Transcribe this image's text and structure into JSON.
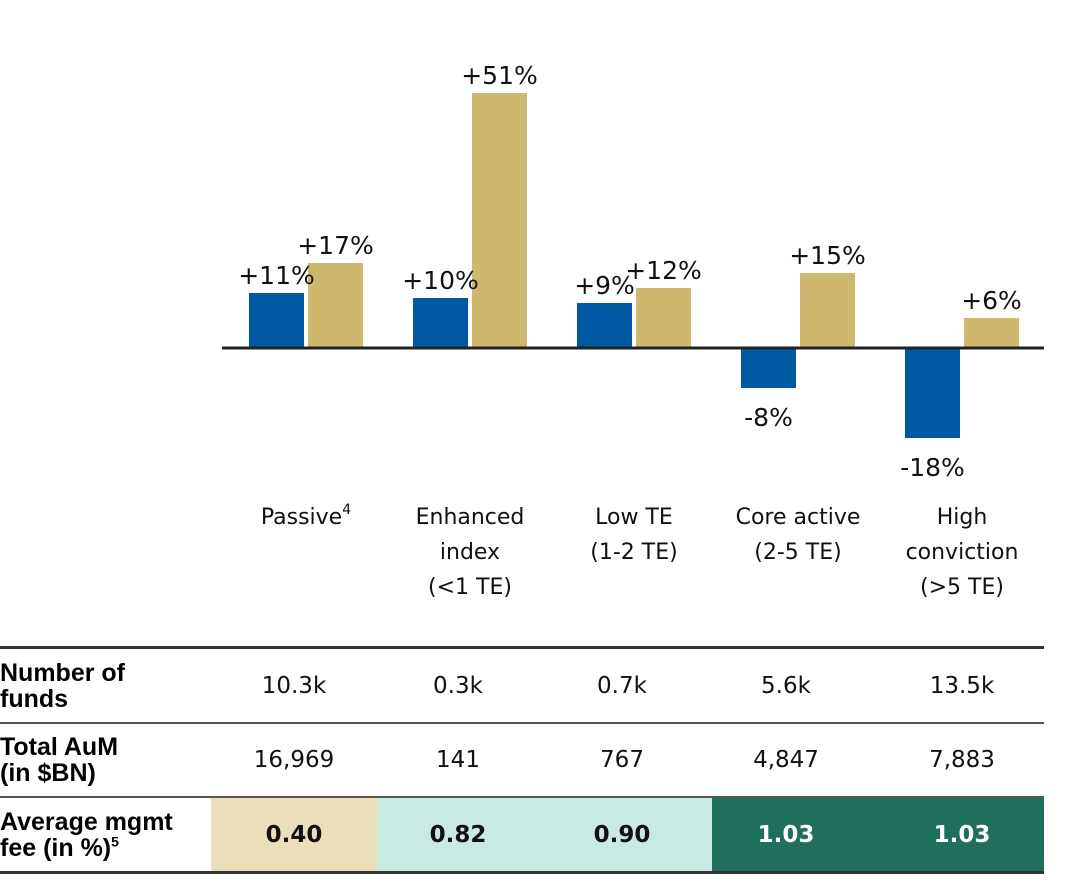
{
  "chart_data": {
    "type": "bar",
    "categories": [
      "Passive",
      "Enhanced index (<1 TE)",
      "Low TE (1-2 TE)",
      "Core active (2-5 TE)",
      "High conviction (>5 TE)"
    ],
    "category_lines": [
      [
        "Passive"
      ],
      [
        "Enhanced",
        "index",
        "(<1 TE)"
      ],
      [
        "Low TE",
        "(1-2 TE)"
      ],
      [
        "Core active",
        "(2-5 TE)"
      ],
      [
        "High",
        "conviction",
        "(>5 TE)"
      ]
    ],
    "category_sup": [
      "4",
      "",
      "",
      "",
      ""
    ],
    "series": [
      {
        "values": [
          11,
          10,
          9,
          -8,
          -18
        ],
        "labels": [
          "+11%",
          "+10%",
          "+9%",
          "-8%",
          "-18%"
        ],
        "color": "#005aa3"
      },
      {
        "values": [
          17,
          51,
          12,
          15,
          6
        ],
        "labels": [
          "+17%",
          "+51%",
          "+12%",
          "+15%",
          "+6%"
        ],
        "color": "#cdb86e"
      }
    ],
    "ylim": [
      -20,
      55
    ],
    "grid": false
  },
  "table": {
    "rows": [
      {
        "label": "Number of funds",
        "label_lines": [
          "Number of",
          "funds"
        ],
        "values": [
          "10.3k",
          "0.3k",
          "0.7k",
          "5.6k",
          "13.5k"
        ]
      },
      {
        "label": "Total AuM (in $BN)",
        "label_lines": [
          "Total AuM",
          "(in $BN)"
        ],
        "values": [
          "16,969",
          "141",
          "767",
          "4,847",
          "7,883"
        ]
      },
      {
        "label": "Average mgmt fee (in %)",
        "label_lines": [
          "Average mgmt",
          "fee (in %)"
        ],
        "label_sup": "5",
        "values": [
          "0.40",
          "0.82",
          "0.90",
          "1.03",
          "1.03"
        ]
      }
    ],
    "fee_colors": [
      "#ebdfbb",
      "#c7ebe2",
      "#c7ebe2",
      "#206e5c",
      "#206e5c"
    ],
    "fee_text_colors": [
      "#111111",
      "#111111",
      "#111111",
      "#ffffff",
      "#ffffff"
    ]
  }
}
